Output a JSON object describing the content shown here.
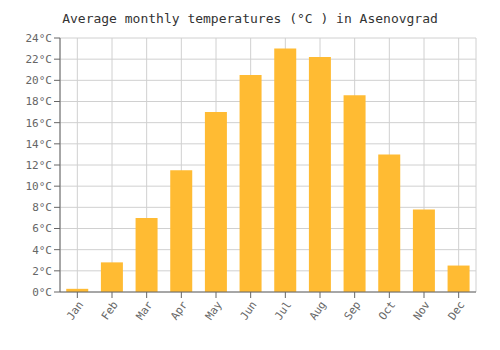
{
  "chart_data": {
    "type": "bar",
    "title": "Average monthly temperatures (°C ) in Asenovgrad",
    "categories": [
      "Jan",
      "Feb",
      "Mar",
      "Apr",
      "May",
      "Jun",
      "Jul",
      "Aug",
      "Sep",
      "Oct",
      "Nov",
      "Dec"
    ],
    "values": [
      0.3,
      2.8,
      7.0,
      11.5,
      17.0,
      20.5,
      23.0,
      22.2,
      18.6,
      13.0,
      7.8,
      2.5
    ],
    "color": "#FFBB33",
    "ylim": [
      0,
      24
    ],
    "yticks": [
      {
        "value": 0,
        "label": "0°C"
      },
      {
        "value": 2,
        "label": "2°C"
      },
      {
        "value": 4,
        "label": "4°C"
      },
      {
        "value": 6,
        "label": "6°C"
      },
      {
        "value": 8,
        "label": "8°C"
      },
      {
        "value": 10,
        "label": "10°C"
      },
      {
        "value": 12,
        "label": "12°C"
      },
      {
        "value": 14,
        "label": "14°C"
      },
      {
        "value": 16,
        "label": "16°C"
      },
      {
        "value": 18,
        "label": "18°C"
      },
      {
        "value": 20,
        "label": "20°C"
      },
      {
        "value": 22,
        "label": "22°C"
      },
      {
        "value": 24,
        "label": "24°C"
      }
    ],
    "grid": true
  }
}
